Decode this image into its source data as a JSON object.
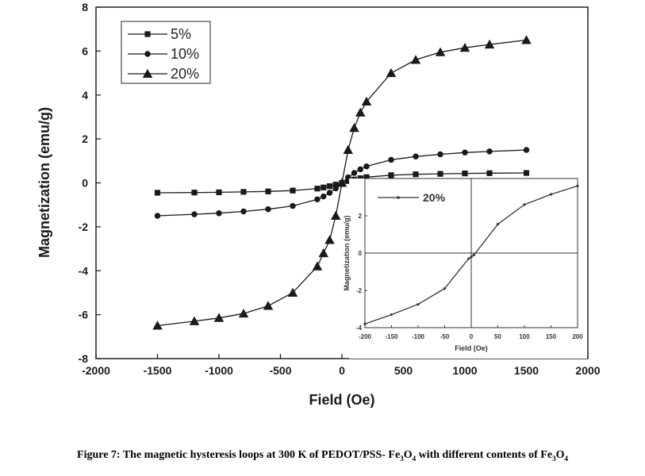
{
  "chart_data": [
    {
      "type": "scatter",
      "title": "",
      "xlabel": "Field (Oe)",
      "ylabel": "Magnetization (emu/g)",
      "xlim": [
        -2000,
        2000
      ],
      "ylim": [
        -8,
        8
      ],
      "xticks": [
        -2000,
        -1500,
        -1000,
        -500,
        0,
        500,
        1000,
        1500,
        2000
      ],
      "yticks": [
        -8,
        -6,
        -4,
        -2,
        0,
        2,
        4,
        6,
        8
      ],
      "grid": false,
      "legend_position": "top-left",
      "series": [
        {
          "name": "5%",
          "marker": "square",
          "x": [
            -1500,
            -1200,
            -1000,
            -800,
            -600,
            -400,
            -200,
            -150,
            -100,
            -50,
            0,
            50,
            100,
            150,
            200,
            400,
            600,
            800,
            1000,
            1200,
            1500
          ],
          "y": [
            -0.45,
            -0.44,
            -0.43,
            -0.41,
            -0.39,
            -0.35,
            -0.26,
            -0.21,
            -0.15,
            -0.08,
            0,
            0.08,
            0.15,
            0.21,
            0.26,
            0.35,
            0.39,
            0.41,
            0.43,
            0.44,
            0.45
          ]
        },
        {
          "name": "10%",
          "marker": "circle",
          "x": [
            -1500,
            -1200,
            -1000,
            -800,
            -600,
            -400,
            -200,
            -150,
            -100,
            -50,
            0,
            50,
            100,
            150,
            200,
            400,
            600,
            800,
            1000,
            1200,
            1500
          ],
          "y": [
            -1.5,
            -1.43,
            -1.38,
            -1.3,
            -1.2,
            -1.05,
            -0.75,
            -0.62,
            -0.45,
            -0.25,
            0,
            0.25,
            0.45,
            0.62,
            0.75,
            1.05,
            1.2,
            1.3,
            1.38,
            1.43,
            1.5
          ]
        },
        {
          "name": "20%",
          "marker": "triangle",
          "x": [
            -1500,
            -1200,
            -1000,
            -800,
            -600,
            -400,
            -200,
            -150,
            -100,
            -50,
            0,
            50,
            100,
            150,
            200,
            400,
            600,
            800,
            1000,
            1200,
            1500
          ],
          "y": [
            -6.5,
            -6.3,
            -6.15,
            -5.95,
            -5.6,
            -5.0,
            -3.8,
            -3.2,
            -2.6,
            -1.5,
            0,
            1.5,
            2.5,
            3.2,
            3.7,
            5.0,
            5.6,
            5.95,
            6.15,
            6.3,
            6.5
          ]
        }
      ]
    },
    {
      "type": "line",
      "title": "",
      "xlabel": "Field (Oe)",
      "ylabel": "Magnetization (emu/g)",
      "xlim": [
        -200,
        200
      ],
      "ylim": [
        -4,
        4
      ],
      "xticks": [
        -200,
        -150,
        -100,
        -50,
        0,
        50,
        100,
        150,
        200
      ],
      "yticks": [
        -4,
        -2,
        0,
        2
      ],
      "legend_position": "top-left",
      "series": [
        {
          "name": "20%",
          "x": [
            -200,
            -150,
            -100,
            -50,
            -5,
            0,
            5,
            50,
            100,
            150,
            200
          ],
          "y": [
            -3.8,
            -3.3,
            -2.75,
            -1.9,
            -0.3,
            -0.2,
            -0.1,
            1.55,
            2.6,
            3.15,
            3.6
          ]
        }
      ]
    }
  ],
  "caption": {
    "prefix": "Figure 7: The magnetic hysteresis loops at 300 K of PEDOT/PSS- Fe",
    "mid1": " with different contents of Fe",
    "sub_a": "3",
    "sub_b": "4",
    "letter_o": "O"
  }
}
